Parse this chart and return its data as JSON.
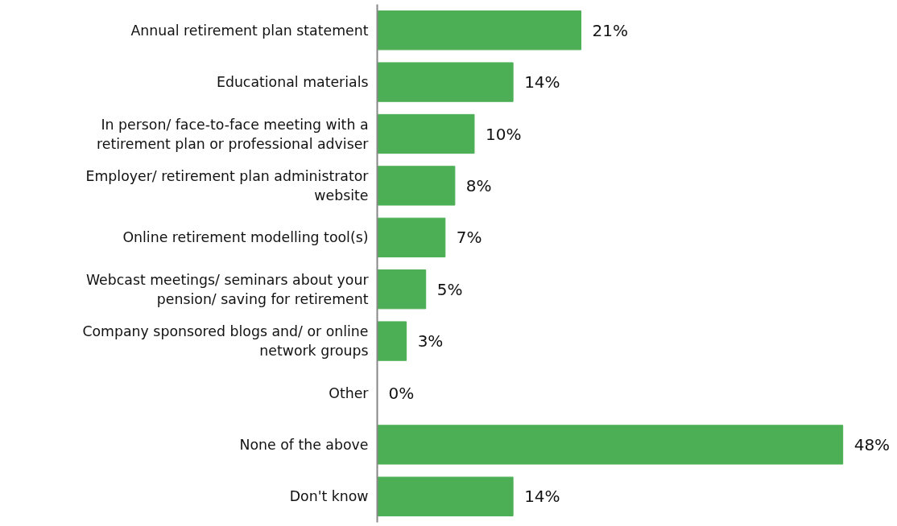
{
  "chart_data": {
    "type": "bar",
    "orientation": "horizontal",
    "categories": [
      "Annual retirement plan statement",
      "Educational materials",
      "In person/ face-to-face meeting with a\nretirement plan or professional adviser",
      "Employer/ retirement plan administrator\nwebsite",
      "Online retirement modelling tool(s)",
      "Webcast meetings/ seminars about your\npension/ saving for retirement",
      "Company sponsored blogs and/ or online\nnetwork groups",
      "Other",
      "None of the above",
      "Don't know"
    ],
    "values": [
      21,
      14,
      10,
      8,
      7,
      5,
      3,
      0,
      48,
      14
    ],
    "color": "#4caf55",
    "data_labels": true,
    "value_labels": [
      "21%",
      "14%",
      "10%",
      "8%",
      "7%",
      "5%",
      "3%",
      "0%",
      "48%",
      "14%"
    ],
    "tick_labels": "y",
    "grid": false
  }
}
